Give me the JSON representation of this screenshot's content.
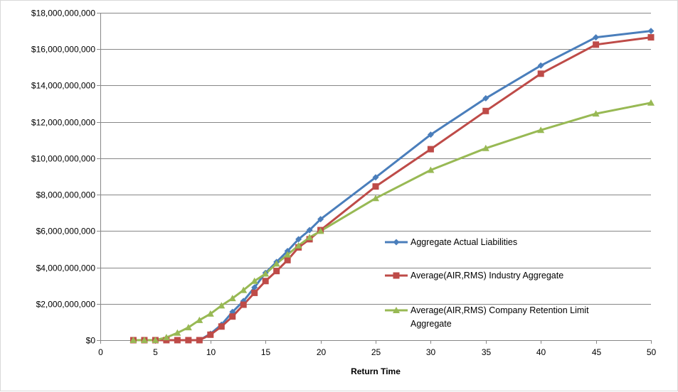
{
  "chart_data": {
    "type": "line",
    "title": "",
    "xlabel": "Return Time",
    "ylabel": "",
    "xlim": [
      0,
      50
    ],
    "ylim": [
      0,
      18000000000
    ],
    "x_ticks": [
      0,
      5,
      10,
      15,
      20,
      25,
      30,
      35,
      40,
      45,
      50
    ],
    "y_ticks": [
      0,
      2000000000,
      4000000000,
      6000000000,
      8000000000,
      10000000000,
      12000000000,
      14000000000,
      16000000000,
      18000000000
    ],
    "x_tick_labels": [
      "0",
      "5",
      "10",
      "15",
      "20",
      "25",
      "30",
      "35",
      "40",
      "45",
      "50"
    ],
    "y_tick_labels": [
      "$0",
      "$2,000,000,000",
      "$4,000,000,000",
      "$6,000,000,000",
      "$8,000,000,000",
      "$10,000,000,000",
      "$12,000,000,000",
      "$14,000,000,000",
      "$16,000,000,000",
      "$18,000,000,000"
    ],
    "grid": "horizontal",
    "legend_position": "right",
    "series": [
      {
        "name": "Aggregate Actual  Liabilities",
        "color": "#4a7ebb",
        "marker": "diamond",
        "points": [
          [
            3,
            0
          ],
          [
            4,
            0
          ],
          [
            5,
            0
          ],
          [
            6,
            0
          ],
          [
            7,
            0
          ],
          [
            8,
            0
          ],
          [
            9,
            0
          ],
          [
            10,
            350000000
          ],
          [
            11,
            850000000
          ],
          [
            12,
            1550000000
          ],
          [
            13,
            2150000000
          ],
          [
            14,
            2900000000
          ],
          [
            15,
            3700000000
          ],
          [
            16,
            4300000000
          ],
          [
            17,
            4900000000
          ],
          [
            18,
            5550000000
          ],
          [
            19,
            6050000000
          ],
          [
            20,
            6650000000
          ],
          [
            25,
            8950000000
          ],
          [
            30,
            11300000000
          ],
          [
            35,
            13300000000
          ],
          [
            40,
            15100000000
          ],
          [
            45,
            16650000000
          ],
          [
            50,
            17000000000
          ]
        ]
      },
      {
        "name": "Average(AIR,RMS) Industry Aggregate",
        "color": "#be4b48",
        "marker": "square",
        "points": [
          [
            3,
            0
          ],
          [
            4,
            0
          ],
          [
            5,
            0
          ],
          [
            6,
            0
          ],
          [
            7,
            0
          ],
          [
            8,
            0
          ],
          [
            9,
            0
          ],
          [
            10,
            300000000
          ],
          [
            11,
            750000000
          ],
          [
            12,
            1300000000
          ],
          [
            13,
            1950000000
          ],
          [
            14,
            2600000000
          ],
          [
            15,
            3250000000
          ],
          [
            16,
            3800000000
          ],
          [
            17,
            4400000000
          ],
          [
            18,
            5100000000
          ],
          [
            19,
            5550000000
          ],
          [
            20,
            6050000000
          ],
          [
            25,
            8450000000
          ],
          [
            30,
            10500000000
          ],
          [
            35,
            12600000000
          ],
          [
            40,
            14650000000
          ],
          [
            45,
            16250000000
          ],
          [
            50,
            16650000000
          ]
        ]
      },
      {
        "name": "Average(AIR,RMS) Company Retention Limit Aggregate",
        "color": "#98b954",
        "marker": "triangle",
        "points": [
          [
            3,
            0
          ],
          [
            4,
            0
          ],
          [
            5,
            0
          ],
          [
            6,
            150000000
          ],
          [
            7,
            400000000
          ],
          [
            8,
            700000000
          ],
          [
            9,
            1100000000
          ],
          [
            10,
            1450000000
          ],
          [
            11,
            1900000000
          ],
          [
            12,
            2300000000
          ],
          [
            13,
            2750000000
          ],
          [
            14,
            3250000000
          ],
          [
            15,
            3650000000
          ],
          [
            16,
            4200000000
          ],
          [
            17,
            4700000000
          ],
          [
            18,
            5200000000
          ],
          [
            19,
            5650000000
          ],
          [
            20,
            6000000000
          ],
          [
            25,
            7800000000
          ],
          [
            30,
            9350000000
          ],
          [
            35,
            10550000000
          ],
          [
            40,
            11550000000
          ],
          [
            45,
            12450000000
          ],
          [
            50,
            13050000000
          ]
        ]
      }
    ]
  },
  "legend": {
    "item_1": "Aggregate Actual  Liabilities",
    "item_2": "Average(AIR,RMS) Industry Aggregate",
    "item_3_line1": "Average(AIR,RMS) Company Retention Limit",
    "item_3_line2": "Aggregate"
  }
}
